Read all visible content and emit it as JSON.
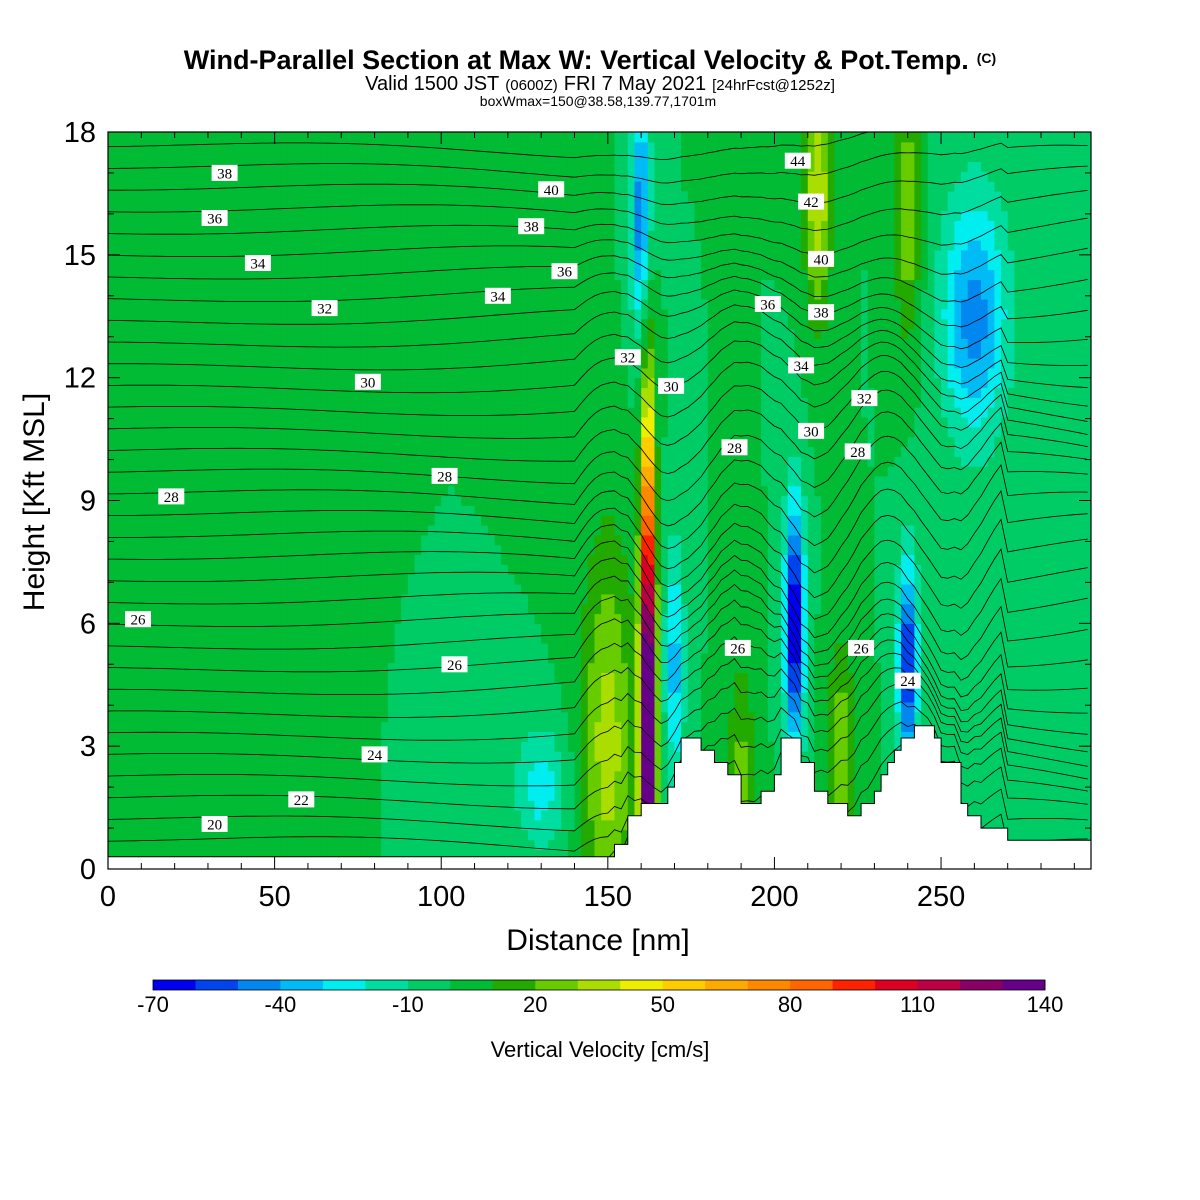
{
  "chart_data": {
    "type": "heatmap",
    "title_main": "Wind-Parallel Section at Max W: Vertical Velocity & Pot.Temp.",
    "title_main_suffix": "(C)",
    "subtitle_lead": "Valid 1500 JST",
    "subtitle_zulu": "(0600Z)",
    "subtitle_date": "FRI 7 May 2021",
    "subtitle_fcst": "[24hrFcst@1252z]",
    "subtitle2": "boxWmax=150@38.58,139.77,1701m",
    "xlabel": "Distance [nm]",
    "ylabel": "Height [Kft MSL]",
    "xlim": [
      0,
      295
    ],
    "ylim": [
      0,
      18
    ],
    "x_ticks": [
      "0",
      "50",
      "100",
      "150",
      "200",
      "250"
    ],
    "y_ticks": [
      "0",
      "3",
      "6",
      "9",
      "12",
      "15",
      "18"
    ],
    "colorbar": {
      "label": "Vertical Velocity [cm/s]",
      "tick_labels": [
        "-70",
        "-40",
        "-10",
        "20",
        "50",
        "80",
        "110",
        "140"
      ],
      "min": -70,
      "step": 10,
      "colors": [
        "#0000ee",
        "#0044ee",
        "#0088f0",
        "#00bbf5",
        "#00eef0",
        "#00dda0",
        "#00cc66",
        "#00bb33",
        "#22aa00",
        "#66cc00",
        "#aadd00",
        "#eeee00",
        "#ffcc00",
        "#ffaa00",
        "#ff8800",
        "#ff6600",
        "#ff2200",
        "#dd0022",
        "#bb0044",
        "#880066",
        "#660088"
      ]
    },
    "terrain": [
      [
        0,
        0.3
      ],
      [
        152,
        0.3
      ],
      [
        152,
        0.6
      ],
      [
        156,
        0.6
      ],
      [
        156,
        1.3
      ],
      [
        160,
        1.3
      ],
      [
        160,
        1.6
      ],
      [
        168,
        1.6
      ],
      [
        168,
        2.0
      ],
      [
        170,
        2.0
      ],
      [
        170,
        2.6
      ],
      [
        172,
        2.6
      ],
      [
        172,
        3.2
      ],
      [
        178,
        3.2
      ],
      [
        178,
        2.9
      ],
      [
        182,
        2.9
      ],
      [
        182,
        2.6
      ],
      [
        186,
        2.6
      ],
      [
        186,
        2.3
      ],
      [
        190,
        2.3
      ],
      [
        190,
        1.6
      ],
      [
        196,
        1.6
      ],
      [
        196,
        1.9
      ],
      [
        200,
        1.9
      ],
      [
        200,
        2.3
      ],
      [
        202,
        2.3
      ],
      [
        202,
        3.2
      ],
      [
        208,
        3.2
      ],
      [
        208,
        2.6
      ],
      [
        212,
        2.6
      ],
      [
        212,
        1.9
      ],
      [
        216,
        1.9
      ],
      [
        216,
        1.6
      ],
      [
        222,
        1.6
      ],
      [
        222,
        1.3
      ],
      [
        226,
        1.3
      ],
      [
        226,
        1.6
      ],
      [
        230,
        1.6
      ],
      [
        230,
        1.9
      ],
      [
        232,
        1.9
      ],
      [
        232,
        2.3
      ],
      [
        234,
        2.3
      ],
      [
        234,
        2.6
      ],
      [
        236,
        2.6
      ],
      [
        236,
        2.9
      ],
      [
        238,
        2.9
      ],
      [
        238,
        3.2
      ],
      [
        242,
        3.2
      ],
      [
        242,
        3.5
      ],
      [
        248,
        3.5
      ],
      [
        248,
        3.2
      ],
      [
        250,
        3.2
      ],
      [
        250,
        2.6
      ],
      [
        256,
        2.6
      ],
      [
        256,
        1.6
      ],
      [
        258,
        1.6
      ],
      [
        258,
        1.3
      ],
      [
        262,
        1.3
      ],
      [
        262,
        1.0
      ],
      [
        270,
        1.0
      ],
      [
        270,
        0.7
      ],
      [
        295,
        0.7
      ]
    ],
    "updraft_cores": [
      {
        "x": 162,
        "y": 7.5,
        "w": 180,
        "z": 2.8,
        "h": 7.5,
        "hw": 2.2
      },
      {
        "x": 150,
        "y": 7,
        "w": 35,
        "z": 3,
        "h": 5,
        "hw": 8
      },
      {
        "x": 190,
        "y": 6,
        "w": 25,
        "z": 2,
        "h": 3,
        "hw": 4
      },
      {
        "x": 220,
        "y": 5.5,
        "w": 30,
        "z": 2.5,
        "h": 3,
        "hw": 4
      },
      {
        "x": 213,
        "y": 17,
        "w": 40,
        "z": 16.5,
        "h": 3,
        "hw": 4
      },
      {
        "x": 240,
        "y": 17,
        "w": 30,
        "z": 16,
        "h": 3,
        "hw": 4
      }
    ],
    "downdraft_cores": [
      {
        "x": 206,
        "y": 6,
        "w": -75,
        "z": 6,
        "h": 3,
        "hw": 3
      },
      {
        "x": 240,
        "y": 5,
        "w": -65,
        "z": 5,
        "h": 2.5,
        "hw": 3
      },
      {
        "x": 170,
        "y": 5,
        "w": -35,
        "z": 5,
        "h": 3,
        "hw": 3
      },
      {
        "x": 160,
        "y": 16.5,
        "w": -50,
        "z": 16,
        "h": 3,
        "hw": 3
      },
      {
        "x": 260,
        "y": 13,
        "w": -45,
        "z": 13.5,
        "h": 3,
        "hw": 10
      },
      {
        "x": 130,
        "y": 2,
        "w": -25,
        "z": 2,
        "h": 1.5,
        "hw": 8
      }
    ],
    "theta_labels": [
      {
        "x": 35,
        "y": 17.0,
        "text": "38"
      },
      {
        "x": 32,
        "y": 15.9,
        "text": "36"
      },
      {
        "x": 45,
        "y": 14.8,
        "text": "34"
      },
      {
        "x": 65,
        "y": 13.7,
        "text": "32"
      },
      {
        "x": 78,
        "y": 11.9,
        "text": "30"
      },
      {
        "x": 19,
        "y": 9.1,
        "text": "28"
      },
      {
        "x": 9,
        "y": 6.1,
        "text": "26"
      },
      {
        "x": 80,
        "y": 2.8,
        "text": "24"
      },
      {
        "x": 58,
        "y": 1.7,
        "text": "22"
      },
      {
        "x": 32,
        "y": 1.1,
        "text": "20"
      },
      {
        "x": 133,
        "y": 16.6,
        "text": "40"
      },
      {
        "x": 127,
        "y": 15.7,
        "text": "38"
      },
      {
        "x": 137,
        "y": 14.6,
        "text": "36"
      },
      {
        "x": 117,
        "y": 14.0,
        "text": "34"
      },
      {
        "x": 156,
        "y": 12.5,
        "text": "32"
      },
      {
        "x": 169,
        "y": 11.8,
        "text": "30"
      },
      {
        "x": 101,
        "y": 9.6,
        "text": "28"
      },
      {
        "x": 104,
        "y": 5.0,
        "text": "26"
      },
      {
        "x": 207,
        "y": 17.3,
        "text": "44"
      },
      {
        "x": 211,
        "y": 16.3,
        "text": "42"
      },
      {
        "x": 214,
        "y": 14.9,
        "text": "40"
      },
      {
        "x": 214,
        "y": 13.6,
        "text": "38"
      },
      {
        "x": 198,
        "y": 13.8,
        "text": "36"
      },
      {
        "x": 208,
        "y": 12.3,
        "text": "34"
      },
      {
        "x": 211,
        "y": 10.7,
        "text": "30"
      },
      {
        "x": 227,
        "y": 11.5,
        "text": "32"
      },
      {
        "x": 188,
        "y": 10.3,
        "text": "28"
      },
      {
        "x": 225,
        "y": 10.2,
        "text": "28"
      },
      {
        "x": 189,
        "y": 5.4,
        "text": "26"
      },
      {
        "x": 226,
        "y": 5.4,
        "text": "26"
      },
      {
        "x": 240,
        "y": 4.6,
        "text": "24"
      }
    ]
  }
}
